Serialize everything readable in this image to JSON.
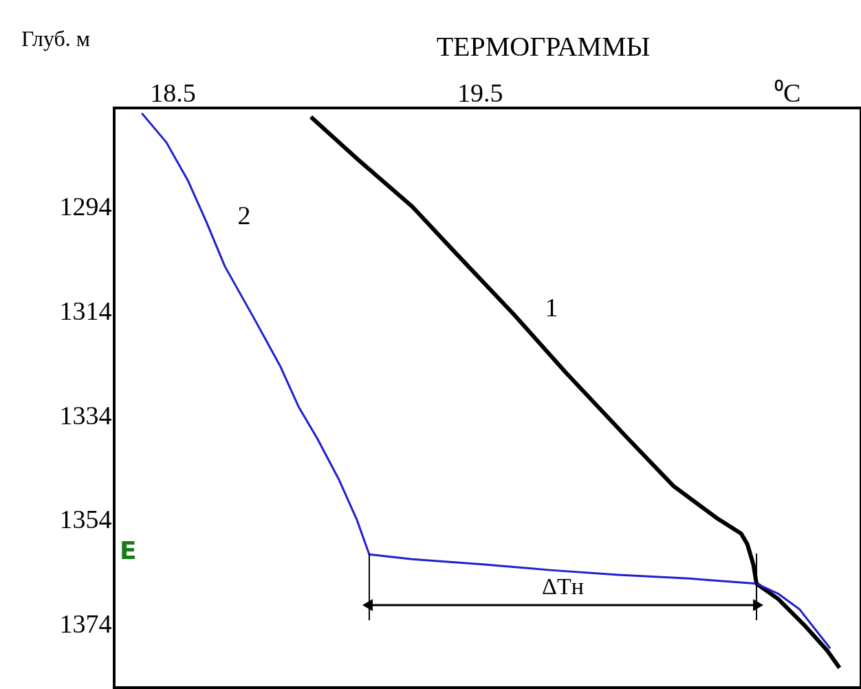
{
  "chart_data": {
    "type": "line",
    "title": "ТЕРМОГРАММЫ",
    "ylabel": "Глуб. м",
    "xlim": [
      18.31,
      20.74
    ],
    "ylim": [
      1386,
      1275
    ],
    "xticks": [
      18.5,
      19.5,
      {
        "value": 20.5,
        "label": "⁰C"
      }
    ],
    "yticks": [
      1294,
      1314,
      1334,
      1354,
      1374
    ],
    "grid": false,
    "marker": "none",
    "line_style": "solid",
    "series": [
      {
        "name": "1",
        "color": "#000000",
        "x": [
          18.95,
          19.1,
          19.28,
          19.42,
          19.61,
          19.78,
          19.98,
          20.13,
          20.27,
          20.35,
          20.37,
          20.39,
          20.4,
          20.47,
          20.56,
          20.63,
          20.67
        ],
        "values": [
          1276.7,
          1284.7,
          1293.9,
          1302.7,
          1314.5,
          1325.7,
          1338.2,
          1347.4,
          1353.5,
          1356.5,
          1358.5,
          1362.5,
          1366.1,
          1369.0,
          1374.3,
          1378.9,
          1382.2
        ]
      },
      {
        "name": "2",
        "color": "#1f1fd0",
        "x": [
          18.4,
          18.48,
          18.55,
          18.61,
          18.67,
          18.77,
          18.85,
          18.91,
          18.97,
          19.04,
          19.1,
          19.14,
          19.28,
          19.51,
          19.73,
          19.95,
          20.18,
          20.31,
          20.4,
          20.47,
          20.54,
          20.64
        ],
        "values": [
          1276.0,
          1281.6,
          1288.9,
          1296.8,
          1305.3,
          1315.8,
          1324.4,
          1332.2,
          1338.2,
          1346.0,
          1353.9,
          1360.5,
          1361.4,
          1362.4,
          1363.5,
          1364.4,
          1365.1,
          1365.7,
          1366.1,
          1368.0,
          1371.0,
          1378.5
        ]
      }
    ],
    "ref_lines": [
      {
        "axis": "x",
        "value": 19.14
      },
      {
        "axis": "x",
        "value": 20.4
      }
    ],
    "annotations": [
      "ΔTн",
      "E"
    ]
  }
}
